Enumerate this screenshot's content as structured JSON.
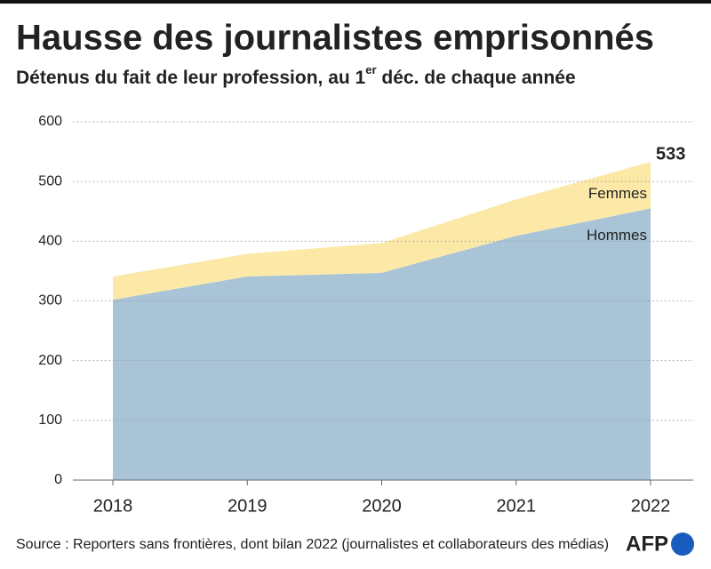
{
  "chart_data": {
    "type": "stacked-area",
    "title": "Hausse des journalistes emprisonnés",
    "subtitle": [
      "Détenus du fait de leur profession, au 1",
      "er",
      " déc. de chaque année"
    ],
    "categories": [
      "2018",
      "2019",
      "2020",
      "2021",
      "2022"
    ],
    "series": [
      {
        "name": "Hommes",
        "color": "#a8c4d6",
        "values": [
          302,
          341,
          347,
          409,
          455
        ]
      },
      {
        "name": "Femmes",
        "color": "#fce9a8",
        "values": [
          39,
          38,
          50,
          61,
          78
        ]
      }
    ],
    "annotation": "533",
    "ylim": [
      0,
      600
    ],
    "yticks": [
      0,
      100,
      200,
      300,
      400,
      500,
      600
    ],
    "grid": true,
    "source": "Source : Reporters sans frontières, dont bilan 2022 (journalistes et collaborateurs des médias)",
    "logo": "AFP"
  }
}
